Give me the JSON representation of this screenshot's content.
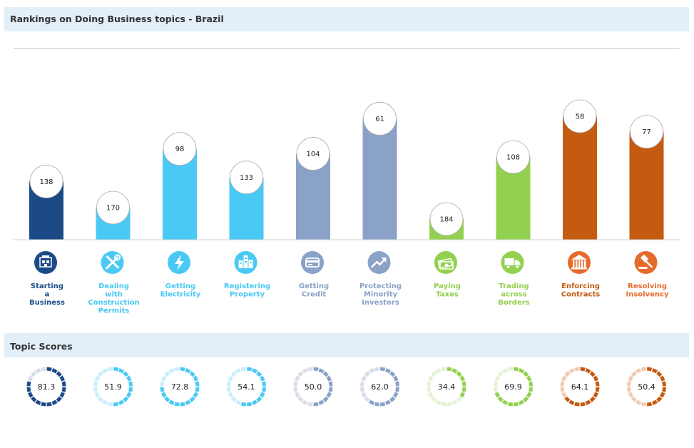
{
  "header": {
    "title": "Rankings on Doing Business topics - Brazil"
  },
  "scores_header": {
    "title": "Topic Scores"
  },
  "chart_data": {
    "type": "bar",
    "title": "Rankings on Doing Business topics - Brazil",
    "xlabel": "",
    "ylabel": "",
    "categories": [
      [
        "Starting",
        "a",
        "Business"
      ],
      [
        "Dealing",
        "with",
        "Construction",
        "Permits"
      ],
      [
        "Getting",
        "Electricity"
      ],
      [
        "Registering",
        "Property"
      ],
      [
        "Getting",
        "Credit"
      ],
      [
        "Protecting",
        "Minority",
        "Investors"
      ],
      [
        "Paying",
        "Taxes"
      ],
      [
        "Trading",
        "across",
        "Borders"
      ],
      [
        "Enforcing",
        "Contracts"
      ],
      [
        "Resolving",
        "Insolvency"
      ]
    ],
    "values": [
      138,
      170,
      98,
      133,
      104,
      61,
      184,
      108,
      58,
      77
    ],
    "value_labels": [
      "138",
      "170",
      "98",
      "133",
      "104",
      "61",
      "184",
      "108",
      "58",
      "77"
    ],
    "bar_colors": [
      "#1b4a87",
      "#4ac9f5",
      "#4ac9f5",
      "#4ac9f5",
      "#8aa2c8",
      "#8aa2c8",
      "#92d050",
      "#92d050",
      "#c55a11",
      "#c55a11"
    ],
    "label_colors": [
      "#1b4a87",
      "#4ac9f5",
      "#4ac9f5",
      "#4ac9f5",
      "#8aa2c8",
      "#8aa2c8",
      "#92d050",
      "#92d050",
      "#c55a11",
      "#e56b2c"
    ],
    "icon_colors": [
      "#1b4a87",
      "#4ac9f5",
      "#4ac9f5",
      "#4ac9f5",
      "#8aa2c8",
      "#8aa2c8",
      "#92d050",
      "#92d050",
      "#e56b2c",
      "#e56b2c"
    ],
    "icons": [
      "building-icon",
      "tools-icon",
      "lightning-icon",
      "city-icon",
      "credit-card-icon",
      "trend-up-icon",
      "money-icon",
      "truck-icon",
      "courthouse-icon",
      "gavel-icon"
    ],
    "scores": [
      81.3,
      51.9,
      72.8,
      54.1,
      50.0,
      62.0,
      34.4,
      69.9,
      64.1,
      50.4
    ],
    "score_labels": [
      "81.3",
      "51.9",
      "72.8",
      "54.1",
      "50.0",
      "62.0",
      "34.4",
      "69.9",
      "64.1",
      "50.4"
    ],
    "score_scale": [
      0,
      100
    ],
    "score_track_colors": [
      "#d9dde8",
      "#c9eefc",
      "#c9eefc",
      "#c9eefc",
      "#d9dde8",
      "#d9dde8",
      "#e3f2d5",
      "#e3f2d5",
      "#efcbb1",
      "#efcbb1"
    ],
    "rank_axis": [
      0,
      190
    ],
    "grid": false
  }
}
